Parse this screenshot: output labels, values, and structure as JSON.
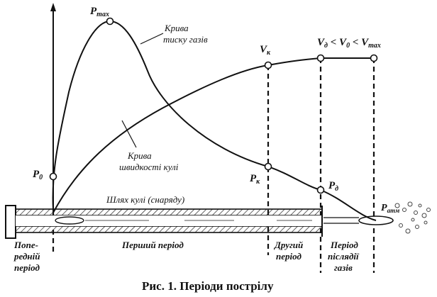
{
  "labels": {
    "p_max": {
      "main": "P",
      "sub": "max"
    },
    "p_0": {
      "main": "P",
      "sub": "0"
    },
    "p_k": {
      "main": "P",
      "sub": "к"
    },
    "p_d": {
      "main": "P",
      "sub": "д"
    },
    "p_atm": {
      "main": "P",
      "sub": "атм"
    },
    "v_k": {
      "main": "V",
      "sub": "к"
    },
    "velocity_relation": {
      "v1": "V",
      "s1": "д",
      "op1": " < ",
      "v2": "V",
      "s2": "0",
      "op2": " < ",
      "v3": "V",
      "s3": "max"
    }
  },
  "annotations": {
    "pressure_curve_line1": "Крива",
    "pressure_curve_line2": "тиску газів",
    "velocity_curve_line1": "Крива",
    "velocity_curve_line2": "швидкості кулі",
    "bullet_path": "Шлях кулі (снаряду)"
  },
  "periods": {
    "preliminary_line1": "Попе-",
    "preliminary_line2": "редній",
    "preliminary_line3": "період",
    "first": "Перший період",
    "second_line1": "Другий",
    "second_line2": "період",
    "after_line1": "Період",
    "after_line2": "післядії",
    "after_line3": "газів"
  },
  "caption": "Рис. 1. Періоди пострілу"
}
